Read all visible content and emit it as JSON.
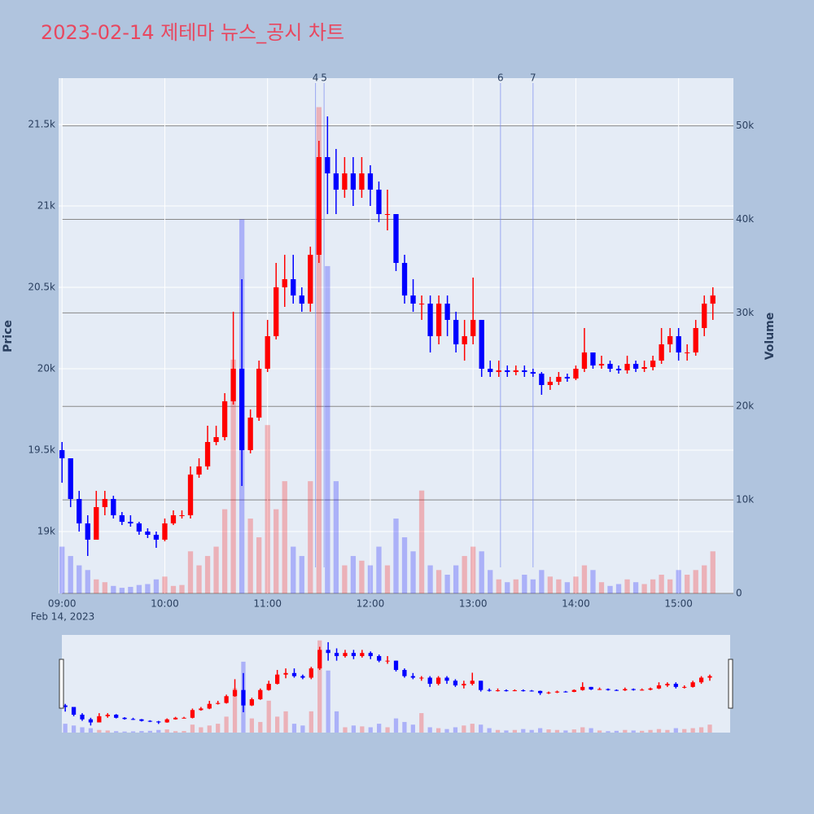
{
  "chart_data": {
    "type": "candlestick",
    "title": "2023-02-14 제테마 뉴스_공시 차트",
    "y_title": "Price",
    "y2_title": "Volume",
    "x_date_label": "Feb 14, 2023",
    "increasing_color": "#ff0000",
    "decreasing_color": "#0000ff",
    "xlim": [
      "08:58",
      "15:32"
    ],
    "xticks": [
      "09:00",
      "10:00",
      "11:00",
      "12:00",
      "13:00",
      "14:00",
      "15:00"
    ],
    "ylim": [
      18620,
      21785
    ],
    "yticks": [
      {
        "value": 19000,
        "label": "19k"
      },
      {
        "value": 19500,
        "label": "19.5k"
      },
      {
        "value": 20000,
        "label": "20k"
      },
      {
        "value": 20500,
        "label": "20.5k"
      },
      {
        "value": 21000,
        "label": "21k"
      },
      {
        "value": 21500,
        "label": "21.5k"
      }
    ],
    "y2lim": [
      0,
      55100
    ],
    "y2ticks": [
      0,
      {
        "value": 10000,
        "label": "10k"
      },
      {
        "value": 20000,
        "label": "20k"
      },
      {
        "value": 30000,
        "label": "30k"
      },
      {
        "value": 40000,
        "label": "40k"
      },
      {
        "value": 50000,
        "label": "50k"
      }
    ],
    "grid": true,
    "annotations": [
      {
        "x": "11:28",
        "text": "4"
      },
      {
        "x": "11:33",
        "text": "5"
      },
      {
        "x": "13:16",
        "text": "6"
      },
      {
        "x": "13:35",
        "text": "7"
      }
    ],
    "x": [
      "09:00",
      "09:05",
      "09:10",
      "09:15",
      "09:20",
      "09:25",
      "09:30",
      "09:35",
      "09:40",
      "09:45",
      "09:50",
      "09:55",
      "10:00",
      "10:05",
      "10:10",
      "10:15",
      "10:20",
      "10:25",
      "10:30",
      "10:35",
      "10:40",
      "10:45",
      "10:50",
      "10:55",
      "11:00",
      "11:05",
      "11:10",
      "11:15",
      "11:20",
      "11:25",
      "11:30",
      "11:35",
      "11:40",
      "11:45",
      "11:50",
      "11:55",
      "12:00",
      "12:05",
      "12:10",
      "12:15",
      "12:20",
      "12:25",
      "12:30",
      "12:35",
      "12:40",
      "12:45",
      "12:50",
      "12:55",
      "13:00",
      "13:05",
      "13:10",
      "13:15",
      "13:20",
      "13:25",
      "13:30",
      "13:35",
      "13:40",
      "13:45",
      "13:50",
      "13:55",
      "14:00",
      "14:05",
      "14:10",
      "14:15",
      "14:20",
      "14:25",
      "14:30",
      "14:35",
      "14:40",
      "14:45",
      "14:50",
      "14:55",
      "15:00",
      "15:05",
      "15:10",
      "15:15",
      "15:20"
    ],
    "open": [
      19500,
      19450,
      19200,
      19050,
      18950,
      19150,
      19200,
      19100,
      19060,
      19050,
      19000,
      18980,
      18950,
      19050,
      19100,
      19100,
      19350,
      19400,
      19550,
      19580,
      19800,
      20000,
      19500,
      19700,
      20000,
      20200,
      20500,
      20550,
      20450,
      20400,
      20700,
      21300,
      21200,
      21100,
      21200,
      21100,
      21200,
      21100,
      20950,
      20950,
      20650,
      20450,
      20400,
      20400,
      20200,
      20400,
      20300,
      20150,
      20200,
      20300,
      20000,
      19980,
      19990,
      19980,
      19990,
      19980,
      19970,
      19900,
      19920,
      19950,
      19940,
      20000,
      20100,
      20020,
      20030,
      20000,
      19990,
      20030,
      20000,
      20010,
      20050,
      20150,
      20200,
      20100,
      20100,
      20250,
      20400
    ],
    "high": [
      19550,
      19450,
      19250,
      19100,
      19250,
      19250,
      19220,
      19120,
      19100,
      19060,
      19020,
      19000,
      19080,
      19130,
      19130,
      19400,
      19450,
      19650,
      19650,
      19850,
      20350,
      20550,
      19750,
      20050,
      20300,
      20650,
      20700,
      20700,
      20500,
      20750,
      21400,
      21550,
      21350,
      21300,
      21300,
      21300,
      21250,
      21150,
      21100,
      20950,
      20700,
      20550,
      20450,
      20450,
      20450,
      20450,
      20350,
      20300,
      20560,
      20300,
      20050,
      20050,
      20020,
      20020,
      20020,
      20000,
      19980,
      19950,
      19980,
      19970,
      20020,
      20250,
      20100,
      20080,
      20050,
      20020,
      20080,
      20050,
      20050,
      20080,
      20250,
      20250,
      20250,
      20150,
      20300,
      20450,
      20500
    ],
    "low": [
      19300,
      19150,
      19000,
      18850,
      18950,
      19100,
      19080,
      19040,
      19030,
      18980,
      18960,
      18900,
      18940,
      19040,
      19080,
      19080,
      19330,
      19380,
      19530,
      19560,
      19780,
      19280,
      19480,
      19680,
      19980,
      20180,
      20380,
      20400,
      20350,
      20350,
      20650,
      20950,
      20950,
      21050,
      21000,
      21050,
      21000,
      20900,
      20850,
      20600,
      20400,
      20350,
      20300,
      20100,
      20150,
      20200,
      20100,
      20050,
      20150,
      19950,
      19950,
      19950,
      19950,
      19960,
      19950,
      19950,
      19840,
      19870,
      19900,
      19920,
      19930,
      19980,
      20000,
      20000,
      19980,
      19970,
      19970,
      19980,
      19980,
      19990,
      20030,
      20100,
      20050,
      20050,
      20080,
      20200,
      20300
    ],
    "close": [
      19450,
      19200,
      19050,
      18950,
      19150,
      19200,
      19100,
      19060,
      19050,
      19000,
      18980,
      18950,
      19050,
      19100,
      19100,
      19350,
      19400,
      19550,
      19580,
      19800,
      20000,
      19500,
      19700,
      20000,
      20200,
      20500,
      20550,
      20450,
      20400,
      20700,
      21300,
      21200,
      21100,
      21200,
      21100,
      21200,
      21100,
      20950,
      20950,
      20650,
      20450,
      20400,
      20400,
      20200,
      20400,
      20300,
      20150,
      20200,
      20300,
      20000,
      19980,
      19990,
      19980,
      19990,
      19980,
      19970,
      19900,
      19920,
      19950,
      19940,
      20000,
      20100,
      20020,
      20030,
      20000,
      19990,
      20030,
      20000,
      20010,
      20050,
      20150,
      20200,
      20100,
      20100,
      20250,
      20400,
      20450
    ],
    "volume": [
      5000,
      4000,
      3000,
      2500,
      1500,
      1200,
      800,
      600,
      700,
      900,
      1000,
      1500,
      1800,
      800,
      900,
      4500,
      3000,
      4000,
      5000,
      9000,
      25000,
      40000,
      8000,
      6000,
      18000,
      9000,
      12000,
      5000,
      4000,
      12000,
      52000,
      35000,
      12000,
      3000,
      4000,
      3500,
      3000,
      5000,
      3000,
      8000,
      6000,
      4500,
      11000,
      3000,
      2500,
      2000,
      3000,
      4000,
      5000,
      4500,
      2500,
      1500,
      1200,
      1500,
      2000,
      1500,
      2500,
      1800,
      1500,
      1200,
      1800,
      3000,
      2500,
      1200,
      800,
      1000,
      1500,
      1200,
      1000,
      1500,
      2000,
      1500,
      2500,
      2000,
      2500,
      3000,
      4500
    ]
  }
}
